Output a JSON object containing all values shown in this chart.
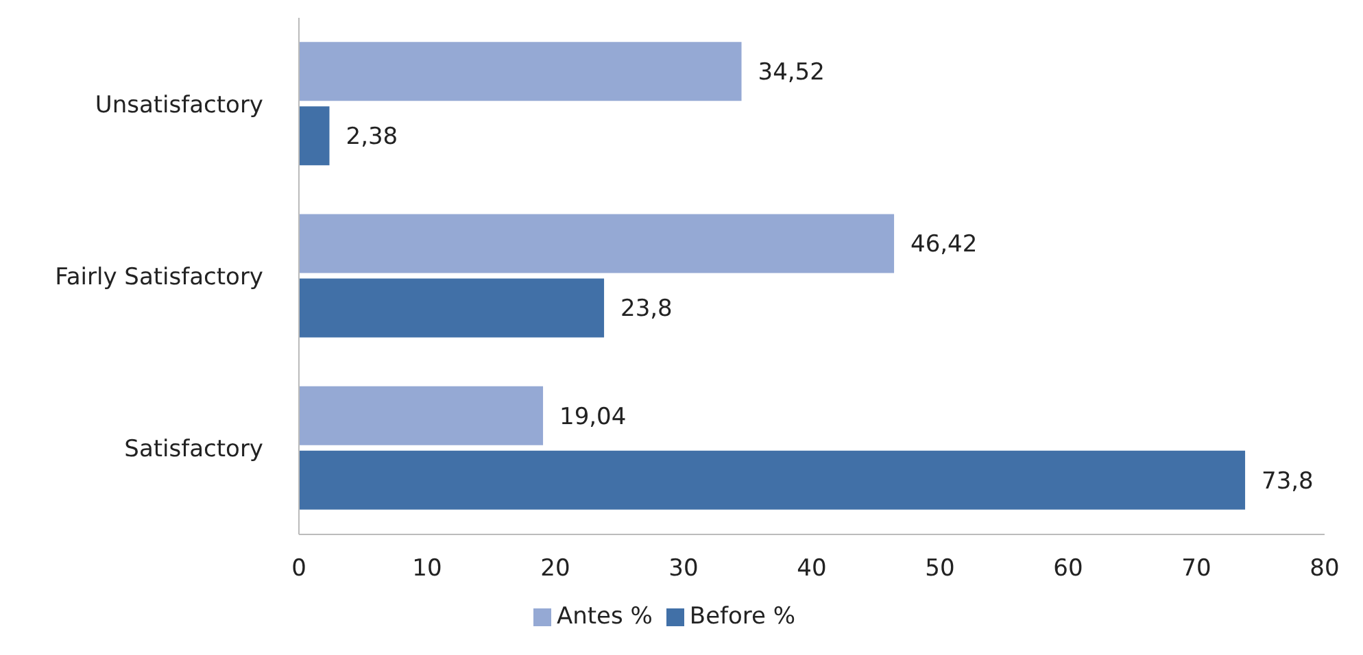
{
  "chart_data": {
    "type": "bar",
    "orientation": "horizontal",
    "categories": [
      "Unsatisfactory",
      "Fairly Satisfactory",
      "Satisfactory"
    ],
    "series": [
      {
        "name": "Antes %",
        "color": "#95a9d4",
        "values": [
          34.52,
          46.42,
          19.04
        ],
        "value_labels": [
          "34,52",
          "46,42",
          "19,04"
        ]
      },
      {
        "name": "Before %",
        "color": "#4170a7",
        "values": [
          2.38,
          23.8,
          73.8
        ],
        "value_labels": [
          "2,38",
          "23,8",
          "73,8"
        ]
      }
    ],
    "xlim": [
      0,
      80
    ],
    "xticks": [
      0,
      10,
      20,
      30,
      40,
      50,
      60,
      70,
      80
    ],
    "grid": false,
    "legend": "bottom"
  }
}
